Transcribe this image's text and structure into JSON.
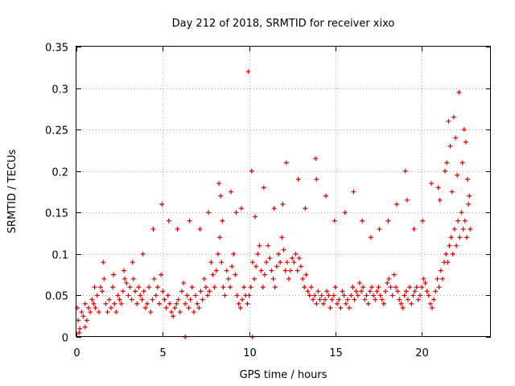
{
  "chart_data": {
    "type": "scatter",
    "title": "Day 212 of 2018, SRMTID for receiver xixo",
    "xlabel": "GPS time / hours",
    "ylabel": "SRMTID / TECUs",
    "xlim": [
      0,
      24
    ],
    "ylim": [
      0,
      0.35
    ],
    "xticks": [
      0,
      5,
      10,
      15,
      20
    ],
    "xtick_labels": [
      "0",
      "5",
      "10",
      "15",
      "20"
    ],
    "yticks": [
      0,
      0.05,
      0.1,
      0.15,
      0.2,
      0.25,
      0.3,
      0.35
    ],
    "ytick_labels": [
      "0",
      "0.05",
      "0.1",
      "0.15",
      "0.2",
      "0.25",
      "0.3",
      "0.35"
    ],
    "grid": true,
    "marker": "plus",
    "color": "#e00000",
    "series": [
      {
        "name": "SRMTID",
        "x": [
          0.05,
          0.1,
          0.2,
          0.3,
          0.4,
          0.5,
          0.6,
          0.7,
          0.8,
          0.9,
          1.0,
          1.1,
          1.2,
          1.3,
          1.4,
          1.5,
          1.6,
          1.7,
          1.8,
          1.9,
          2.0,
          2.1,
          2.2,
          2.3,
          2.4,
          2.5,
          2.6,
          2.7,
          2.8,
          2.9,
          3.0,
          3.1,
          3.2,
          3.3,
          3.4,
          3.5,
          3.6,
          3.7,
          3.8,
          3.9,
          4.0,
          4.1,
          4.2,
          4.3,
          4.4,
          4.5,
          4.6,
          4.7,
          4.8,
          4.9,
          5.0,
          5.1,
          5.2,
          5.3,
          5.4,
          5.5,
          5.6,
          5.7,
          5.8,
          5.9,
          6.0,
          6.1,
          6.2,
          6.3,
          6.4,
          6.5,
          6.6,
          6.7,
          6.8,
          6.9,
          7.0,
          7.1,
          7.2,
          7.3,
          7.4,
          7.5,
          7.6,
          7.7,
          7.8,
          7.9,
          8.0,
          8.1,
          8.2,
          8.3,
          8.4,
          8.5,
          8.6,
          8.7,
          8.8,
          8.9,
          9.0,
          9.1,
          9.2,
          9.3,
          9.4,
          9.5,
          9.6,
          9.7,
          9.8,
          9.9,
          10.0,
          10.1,
          10.2,
          10.3,
          10.4,
          10.5,
          10.6,
          10.7,
          10.8,
          10.9,
          11.0,
          11.1,
          11.2,
          11.3,
          11.4,
          11.5,
          11.6,
          11.7,
          11.8,
          11.9,
          12.0,
          12.1,
          12.2,
          12.3,
          12.4,
          12.5,
          12.6,
          12.7,
          12.8,
          12.9,
          13.0,
          13.1,
          13.2,
          13.3,
          13.4,
          13.5,
          13.6,
          13.7,
          13.8,
          13.9,
          14.0,
          14.1,
          14.2,
          14.3,
          14.4,
          14.5,
          14.6,
          14.7,
          14.8,
          14.9,
          15.0,
          15.1,
          15.2,
          15.3,
          15.4,
          15.5,
          15.6,
          15.7,
          15.8,
          15.9,
          16.0,
          16.1,
          16.2,
          16.3,
          16.4,
          16.5,
          16.6,
          16.7,
          16.8,
          16.9,
          17.0,
          17.1,
          17.2,
          17.3,
          17.4,
          17.5,
          17.6,
          17.7,
          17.8,
          17.9,
          18.0,
          18.1,
          18.2,
          18.3,
          18.4,
          18.5,
          18.6,
          18.7,
          18.8,
          18.9,
          19.0,
          19.1,
          19.2,
          19.3,
          19.4,
          19.5,
          19.6,
          19.7,
          19.8,
          19.9,
          20.0,
          20.1,
          20.2,
          20.3,
          20.4,
          20.5,
          20.6,
          20.7,
          20.8,
          20.9,
          21.0,
          21.1,
          21.2,
          21.3,
          21.4,
          21.5,
          21.6,
          21.7,
          21.8,
          21.9,
          22.0,
          22.1,
          22.2,
          22.3,
          22.4,
          22.5,
          22.6,
          22.7,
          22.8,
          0.15,
          0.5,
          1.05,
          1.55,
          2.15,
          2.75,
          3.25,
          3.85,
          4.45,
          4.95,
          5.35,
          5.85,
          6.55,
          7.15,
          7.65,
          8.25,
          8.35,
          8.45,
          8.95,
          9.25,
          9.55,
          9.95,
          10.15,
          10.35,
          10.85,
          11.45,
          11.95,
          12.15,
          12.85,
          13.25,
          13.85,
          13.9,
          14.45,
          14.95,
          15.55,
          16.05,
          16.55,
          17.05,
          17.55,
          18.05,
          18.55,
          19.05,
          19.15,
          19.55,
          20.05,
          20.55,
          20.95,
          21.05,
          21.35,
          21.45,
          21.55,
          21.65,
          21.75,
          21.85,
          21.95,
          22.05,
          22.15,
          22.35,
          22.45,
          22.55,
          22.65,
          22.75,
          6.3,
          10.2
        ],
        "y": [
          0.035,
          0.02,
          0.01,
          0.03,
          0.025,
          0.04,
          0.02,
          0.035,
          0.03,
          0.045,
          0.04,
          0.035,
          0.05,
          0.03,
          0.06,
          0.055,
          0.07,
          0.04,
          0.03,
          0.045,
          0.035,
          0.06,
          0.04,
          0.03,
          0.05,
          0.045,
          0.04,
          0.055,
          0.07,
          0.065,
          0.05,
          0.06,
          0.045,
          0.07,
          0.055,
          0.04,
          0.06,
          0.05,
          0.045,
          0.055,
          0.035,
          0.04,
          0.06,
          0.03,
          0.045,
          0.07,
          0.05,
          0.06,
          0.04,
          0.075,
          0.055,
          0.045,
          0.035,
          0.05,
          0.04,
          0.03,
          0.025,
          0.035,
          0.04,
          0.045,
          0.03,
          0.055,
          0.065,
          0.04,
          0.05,
          0.035,
          0.045,
          0.06,
          0.03,
          0.05,
          0.04,
          0.035,
          0.055,
          0.045,
          0.07,
          0.06,
          0.05,
          0.055,
          0.09,
          0.075,
          0.06,
          0.08,
          0.1,
          0.12,
          0.09,
          0.06,
          0.05,
          0.08,
          0.07,
          0.06,
          0.085,
          0.1,
          0.075,
          0.05,
          0.04,
          0.035,
          0.045,
          0.06,
          0.05,
          0.04,
          0.05,
          0.06,
          0.09,
          0.07,
          0.085,
          0.1,
          0.11,
          0.08,
          0.06,
          0.075,
          0.09,
          0.11,
          0.095,
          0.08,
          0.07,
          0.06,
          0.085,
          0.1,
          0.09,
          0.12,
          0.105,
          0.08,
          0.09,
          0.07,
          0.08,
          0.095,
          0.09,
          0.1,
          0.08,
          0.095,
          0.085,
          0.07,
          0.06,
          0.075,
          0.055,
          0.05,
          0.06,
          0.045,
          0.05,
          0.04,
          0.055,
          0.045,
          0.05,
          0.04,
          0.045,
          0.055,
          0.05,
          0.035,
          0.045,
          0.05,
          0.06,
          0.04,
          0.045,
          0.035,
          0.055,
          0.05,
          0.04,
          0.045,
          0.035,
          0.05,
          0.06,
          0.045,
          0.055,
          0.05,
          0.065,
          0.055,
          0.06,
          0.045,
          0.05,
          0.04,
          0.055,
          0.06,
          0.05,
          0.045,
          0.055,
          0.06,
          0.05,
          0.045,
          0.04,
          0.055,
          0.065,
          0.07,
          0.06,
          0.05,
          0.075,
          0.06,
          0.055,
          0.045,
          0.04,
          0.035,
          0.05,
          0.055,
          0.045,
          0.06,
          0.04,
          0.05,
          0.055,
          0.06,
          0.045,
          0.05,
          0.06,
          0.07,
          0.065,
          0.055,
          0.05,
          0.04,
          0.035,
          0.045,
          0.055,
          0.07,
          0.06,
          0.08,
          0.07,
          0.09,
          0.1,
          0.09,
          0.11,
          0.12,
          0.1,
          0.13,
          0.11,
          0.14,
          0.12,
          0.15,
          0.13,
          0.14,
          0.12,
          0.16,
          0.13,
          0.005,
          0.012,
          0.06,
          0.09,
          0.075,
          0.08,
          0.09,
          0.1,
          0.13,
          0.16,
          0.14,
          0.13,
          0.14,
          0.13,
          0.15,
          0.185,
          0.17,
          0.14,
          0.175,
          0.15,
          0.155,
          0.32,
          0.2,
          0.145,
          0.18,
          0.155,
          0.16,
          0.21,
          0.19,
          0.155,
          0.215,
          0.19,
          0.17,
          0.14,
          0.15,
          0.175,
          0.14,
          0.12,
          0.13,
          0.14,
          0.16,
          0.2,
          0.165,
          0.13,
          0.14,
          0.185,
          0.18,
          0.165,
          0.2,
          0.21,
          0.26,
          0.23,
          0.175,
          0.265,
          0.24,
          0.195,
          0.295,
          0.21,
          0.25,
          0.235,
          0.19,
          0.17,
          0.0,
          0.0
        ]
      }
    ]
  }
}
